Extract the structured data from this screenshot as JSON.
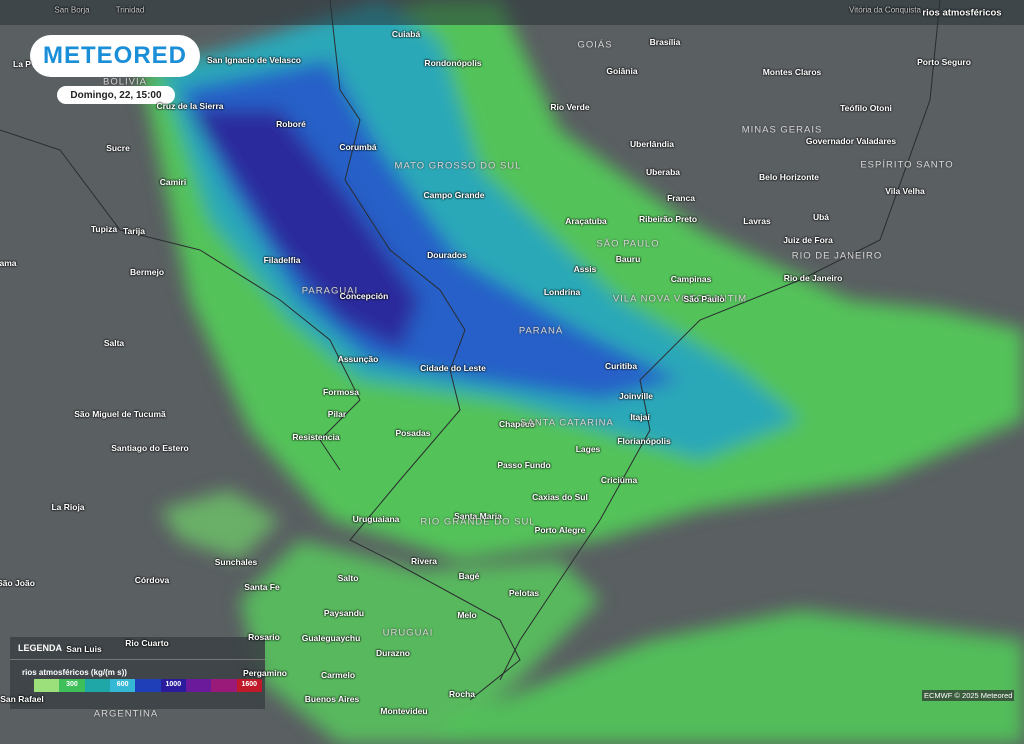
{
  "header": {
    "top_labels": [
      "San Borja",
      "Trinidad",
      "Vitória da Conquista"
    ],
    "layer": "rios atmosféricos"
  },
  "logo": "METEORED",
  "date": "Domingo, 22, 15:00",
  "places": [
    "Cuiabá",
    "GOIÁS",
    "Brasília",
    "Rondonópolis",
    "Goiânia",
    "Montes Claros",
    "Porto Seguro",
    "San Ignacio de Velasco",
    "La P",
    "BOLIVIA",
    "Cruz de la Sierra",
    "Rio Verde",
    "Teófilo Otoni",
    "MINAS GERAIS",
    "Roboré",
    "Uberlândia",
    "Governador Valadares",
    "Sucre",
    "Corumbá",
    "MATO GROSSO DO SUL",
    "ESPÍRITO SANTO",
    "Uberaba",
    "Camiri",
    "Belo Horizonte",
    "Vila Velha",
    "Campo Grande",
    "Franca",
    "Araçatuba",
    "Ribeirão Preto",
    "Lavras",
    "Ubá",
    "Tupiza",
    "Tarija",
    "SÃO PAULO",
    "Juiz de Fora",
    "Filadelfia",
    "Dourados",
    "Bauru",
    "RIO DE JANEIRO",
    "ama",
    "Bermejo",
    "Assis",
    "Campinas",
    "Rio de Janeiro",
    "PARAGUAI",
    "Londrina",
    "VILA NOVA VOTORANTIM",
    "Concepción",
    "São Paulo",
    "PARANÁ",
    "Salta",
    "Assunção",
    "Curitiba",
    "Cidade do Leste",
    "Formosa",
    "Joinville",
    "São Miguel de Tucumã",
    "Pilar",
    "Itajaí",
    "Chapecó",
    "SANTA CATARINA",
    "Resistencia",
    "Posadas",
    "Florianópolis",
    "Santiago do Estero",
    "Lages",
    "Passo Fundo",
    "Criciúma",
    "Caxias do Sul",
    "La Rioja",
    "Santa Maria",
    "RIO GRANDE DO SUL",
    "Uruguaiana",
    "Porto Alegre",
    "Sunchales",
    "Rivera",
    "Bagé",
    "São João",
    "Córdova",
    "Salto",
    "Santa Fe",
    "Pelotas",
    "Paysandu",
    "Melo",
    "URUGUAI",
    "Rosario",
    "Gualeguaychu",
    "Durazno",
    "Pergamino",
    "Carmelo",
    "Buenos Aires",
    "Rocha",
    "San Rafael",
    "Montevideu",
    "ARGENTINA",
    "San Luis",
    "Rio Cuarto"
  ],
  "legend": {
    "title": "LEGENDA",
    "subtitle": "rios atmosféricos (kg/(m s))",
    "ticks": [
      300,
      600,
      1000,
      1600
    ],
    "colors": [
      "#9be07a",
      "#3fbf5a",
      "#1fa7a8",
      "#35b8d6",
      "#1f3fb8",
      "#2a1c9c",
      "#6a1a9a",
      "#9a1a7a",
      "#c01a2a"
    ]
  },
  "credit": "ECMWF © 2025 Meteored"
}
